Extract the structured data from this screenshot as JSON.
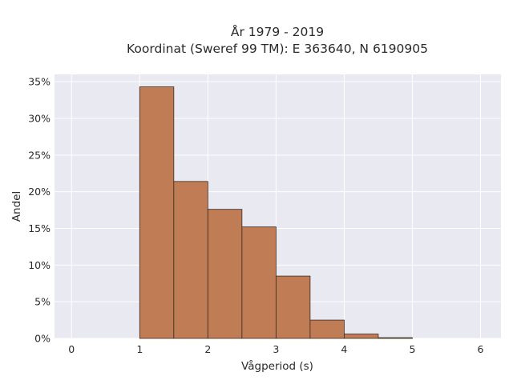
{
  "chart_data": {
    "type": "bar",
    "title_line1": "År 1979 - 2019",
    "title_line2": "Koordinat (Sweref 99 TM): E 363640, N 6190905",
    "xlabel": "Vågperiod (s)",
    "ylabel": "Andel",
    "xlim": [
      -0.25,
      6.3
    ],
    "ylim": [
      0,
      0.36
    ],
    "xticks": [
      0,
      1,
      2,
      3,
      4,
      5,
      6
    ],
    "xtick_labels": [
      "0",
      "1",
      "2",
      "3",
      "4",
      "5",
      "6"
    ],
    "yticks": [
      0,
      0.05,
      0.1,
      0.15,
      0.2,
      0.25,
      0.3,
      0.35
    ],
    "ytick_labels": [
      "0%",
      "5%",
      "10%",
      "15%",
      "20%",
      "25%",
      "30%",
      "35%"
    ],
    "bin_edges": [
      1.0,
      1.5,
      2.0,
      2.5,
      3.0,
      3.5,
      4.0,
      4.5,
      5.0
    ],
    "values": [
      0.343,
      0.214,
      0.176,
      0.152,
      0.085,
      0.025,
      0.006,
      0.001
    ],
    "bar_color": "#bf7c55",
    "background_color": "#e9e9f1",
    "grid": true,
    "legend": false
  }
}
